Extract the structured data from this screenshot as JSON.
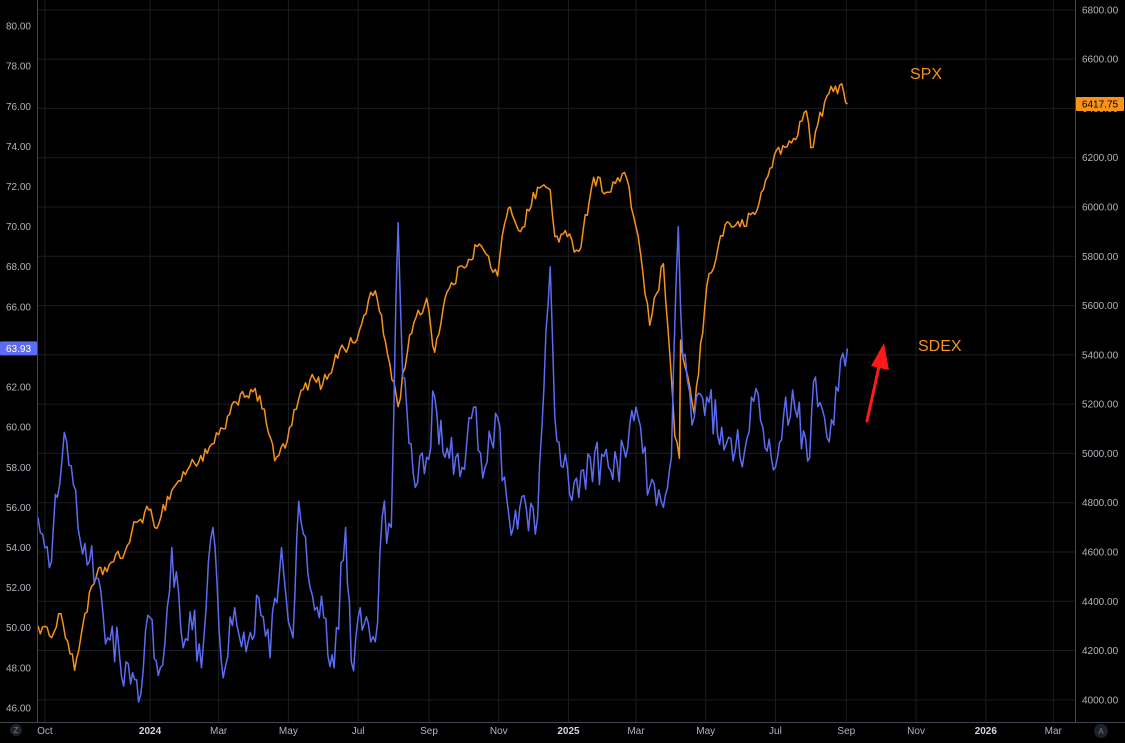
{
  "chart_data": {
    "type": "line",
    "left_axis": {
      "range": [
        45.3,
        81.3
      ],
      "ticks": [
        "46.00",
        "48.00",
        "50.00",
        "52.00",
        "54.00",
        "56.00",
        "58.00",
        "60.00",
        "62.00",
        "64.00",
        "66.00",
        "68.00",
        "70.00",
        "72.00",
        "74.00",
        "76.00",
        "78.00",
        "80.00"
      ]
    },
    "right_axis": {
      "range": [
        3910,
        6840
      ],
      "ticks": [
        "4000.00",
        "4200.00",
        "4400.00",
        "4600.00",
        "4800.00",
        "5000.00",
        "5200.00",
        "5400.00",
        "5600.00",
        "5800.00",
        "6000.00",
        "6200.00",
        "6400.00",
        "6600.00",
        "6800.00"
      ]
    },
    "x_ticks": [
      {
        "label": "Oct",
        "date": "2023-10-01",
        "bold": false
      },
      {
        "label": "2024",
        "date": "2024-01-01",
        "bold": true
      },
      {
        "label": "Mar",
        "date": "2024-03-01",
        "bold": false
      },
      {
        "label": "May",
        "date": "2024-05-01",
        "bold": false
      },
      {
        "label": "Jul",
        "date": "2024-07-01",
        "bold": false
      },
      {
        "label": "Sep",
        "date": "2024-09-01",
        "bold": false
      },
      {
        "label": "Nov",
        "date": "2024-11-01",
        "bold": false
      },
      {
        "label": "2025",
        "date": "2025-01-01",
        "bold": true
      },
      {
        "label": "Mar",
        "date": "2025-03-01",
        "bold": false
      },
      {
        "label": "May",
        "date": "2025-05-01",
        "bold": false
      },
      {
        "label": "Jul",
        "date": "2025-07-01",
        "bold": false
      },
      {
        "label": "Sep",
        "date": "2025-09-01",
        "bold": false
      },
      {
        "label": "Nov",
        "date": "2025-11-01",
        "bold": false
      },
      {
        "label": "2026",
        "date": "2026-01-01",
        "bold": true
      },
      {
        "label": "Mar",
        "date": "2026-03-01",
        "bold": false
      }
    ],
    "x_range": [
      "2023-09-25",
      "2026-03-20"
    ],
    "grid": true,
    "series": [
      {
        "name": "SPX",
        "axis": "right",
        "color": "#f7931a",
        "last_value": "6417.75",
        "points": [
          [
            "2023-09-25",
            4300
          ],
          [
            "2023-10-05",
            4260
          ],
          [
            "2023-10-15",
            4350
          ],
          [
            "2023-10-27",
            4120
          ],
          [
            "2023-11-05",
            4350
          ],
          [
            "2023-11-15",
            4500
          ],
          [
            "2023-11-30",
            4560
          ],
          [
            "2023-12-10",
            4600
          ],
          [
            "2023-12-20",
            4720
          ],
          [
            "2023-12-31",
            4770
          ],
          [
            "2024-01-05",
            4700
          ],
          [
            "2024-01-20",
            4850
          ],
          [
            "2024-02-05",
            4950
          ],
          [
            "2024-02-20",
            5000
          ],
          [
            "2024-03-05",
            5100
          ],
          [
            "2024-03-20",
            5240
          ],
          [
            "2024-03-31",
            5250
          ],
          [
            "2024-04-10",
            5180
          ],
          [
            "2024-04-19",
            4970
          ],
          [
            "2024-04-30",
            5050
          ],
          [
            "2024-05-10",
            5220
          ],
          [
            "2024-05-20",
            5300
          ],
          [
            "2024-05-31",
            5280
          ],
          [
            "2024-06-15",
            5420
          ],
          [
            "2024-06-30",
            5460
          ],
          [
            "2024-07-10",
            5620
          ],
          [
            "2024-07-16",
            5660
          ],
          [
            "2024-07-25",
            5450
          ],
          [
            "2024-08-05",
            5190
          ],
          [
            "2024-08-15",
            5480
          ],
          [
            "2024-08-30",
            5630
          ],
          [
            "2024-09-06",
            5410
          ],
          [
            "2024-09-15",
            5630
          ],
          [
            "2024-09-30",
            5760
          ],
          [
            "2024-10-15",
            5850
          ],
          [
            "2024-10-31",
            5720
          ],
          [
            "2024-11-06",
            5930
          ],
          [
            "2024-11-11",
            6000
          ],
          [
            "2024-11-20",
            5900
          ],
          [
            "2024-12-05",
            6080
          ],
          [
            "2024-12-16",
            6070
          ],
          [
            "2024-12-20",
            5880
          ],
          [
            "2024-12-31",
            5880
          ],
          [
            "2025-01-10",
            5820
          ],
          [
            "2025-01-23",
            6120
          ],
          [
            "2025-02-05",
            6060
          ],
          [
            "2025-02-19",
            6140
          ],
          [
            "2025-03-03",
            5880
          ],
          [
            "2025-03-13",
            5520
          ],
          [
            "2025-03-25",
            5770
          ],
          [
            "2025-04-04",
            5070
          ],
          [
            "2025-04-08",
            4980
          ],
          [
            "2025-04-09",
            5460
          ],
          [
            "2025-04-21",
            5160
          ],
          [
            "2025-05-02",
            5680
          ],
          [
            "2025-05-12",
            5840
          ],
          [
            "2025-05-20",
            5940
          ],
          [
            "2025-05-31",
            5920
          ],
          [
            "2025-06-13",
            5970
          ],
          [
            "2025-06-30",
            6210
          ],
          [
            "2025-07-15",
            6260
          ],
          [
            "2025-07-28",
            6390
          ],
          [
            "2025-08-01",
            6240
          ],
          [
            "2025-08-15",
            6450
          ],
          [
            "2025-08-28",
            6500
          ],
          [
            "2025-09-02",
            6417.75
          ]
        ]
      },
      {
        "name": "SDEX",
        "axis": "left",
        "color": "#5b6cf2",
        "last_value": "63.93",
        "points": [
          [
            "2023-09-25",
            55.5
          ],
          [
            "2023-10-05",
            53.0
          ],
          [
            "2023-10-12",
            56.5
          ],
          [
            "2023-10-20",
            59.3
          ],
          [
            "2023-10-30",
            55.0
          ],
          [
            "2023-11-15",
            52.5
          ],
          [
            "2023-11-25",
            49.5
          ],
          [
            "2023-12-05",
            48.8
          ],
          [
            "2023-12-15",
            47.2
          ],
          [
            "2023-12-22",
            46.3
          ],
          [
            "2024-01-01",
            50.5
          ],
          [
            "2024-01-10",
            48.0
          ],
          [
            "2024-01-20",
            54.0
          ],
          [
            "2024-01-30",
            49.0
          ],
          [
            "2024-02-05",
            50.8
          ],
          [
            "2024-02-15",
            48.0
          ],
          [
            "2024-02-25",
            55.0
          ],
          [
            "2024-03-05",
            47.5
          ],
          [
            "2024-03-15",
            51.0
          ],
          [
            "2024-03-25",
            48.8
          ],
          [
            "2024-04-05",
            51.5
          ],
          [
            "2024-04-15",
            48.5
          ],
          [
            "2024-04-25",
            54.0
          ],
          [
            "2024-05-05",
            49.5
          ],
          [
            "2024-05-10",
            56.3
          ],
          [
            "2024-05-20",
            52.0
          ],
          [
            "2024-06-01",
            50.5
          ],
          [
            "2024-06-10",
            48.0
          ],
          [
            "2024-06-20",
            55.0
          ],
          [
            "2024-06-25",
            48.3
          ],
          [
            "2024-07-01",
            50.5
          ],
          [
            "2024-07-10",
            50.2
          ],
          [
            "2024-07-16",
            49.3
          ],
          [
            "2024-07-22",
            55.5
          ],
          [
            "2024-07-30",
            55.0
          ],
          [
            "2024-08-05",
            70.2
          ],
          [
            "2024-08-09",
            62.5
          ],
          [
            "2024-08-20",
            57.0
          ],
          [
            "2024-08-30",
            58.5
          ],
          [
            "2024-09-06",
            61.5
          ],
          [
            "2024-09-15",
            58.5
          ],
          [
            "2024-09-30",
            58.0
          ],
          [
            "2024-10-10",
            61.0
          ],
          [
            "2024-10-20",
            58.0
          ],
          [
            "2024-10-31",
            60.5
          ],
          [
            "2024-11-10",
            55.5
          ],
          [
            "2024-11-25",
            56.0
          ],
          [
            "2024-12-05",
            55.5
          ],
          [
            "2024-12-16",
            68.0
          ],
          [
            "2024-12-20",
            60.5
          ],
          [
            "2024-12-31",
            58.0
          ],
          [
            "2025-01-10",
            56.5
          ],
          [
            "2025-01-20",
            58.5
          ],
          [
            "2025-02-05",
            58.0
          ],
          [
            "2025-02-20",
            58.5
          ],
          [
            "2025-03-01",
            61.0
          ],
          [
            "2025-03-13",
            57.0
          ],
          [
            "2025-03-25",
            56.0
          ],
          [
            "2025-04-01",
            58.5
          ],
          [
            "2025-04-07",
            70.0
          ],
          [
            "2025-04-11",
            63.5
          ],
          [
            "2025-04-21",
            60.5
          ],
          [
            "2025-05-02",
            61.5
          ],
          [
            "2025-05-15",
            60.0
          ],
          [
            "2025-05-31",
            58.5
          ],
          [
            "2025-06-10",
            61.5
          ],
          [
            "2025-06-20",
            60.0
          ],
          [
            "2025-07-01",
            58.0
          ],
          [
            "2025-07-10",
            61.5
          ],
          [
            "2025-07-20",
            60.5
          ],
          [
            "2025-07-31",
            58.5
          ],
          [
            "2025-08-05",
            62.5
          ],
          [
            "2025-08-15",
            59.5
          ],
          [
            "2025-08-25",
            61.8
          ],
          [
            "2025-09-02",
            63.93
          ]
        ]
      }
    ],
    "annotations": [
      {
        "text": "SPX",
        "series": "SPX"
      },
      {
        "text": "SDEX",
        "series": "SDEX"
      },
      {
        "type": "arrow",
        "color": "#ff1a1a",
        "direction": "up"
      }
    ],
    "corner_labels": {
      "left": "Z",
      "right": "A"
    }
  }
}
